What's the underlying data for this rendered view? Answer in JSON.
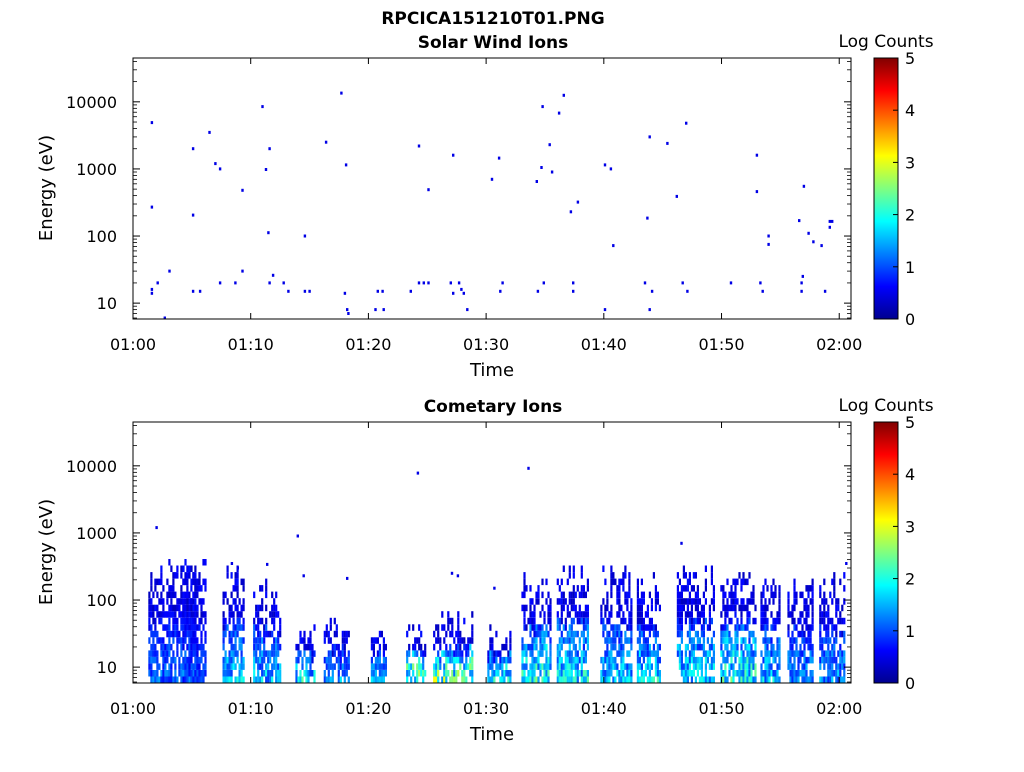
{
  "page_title": "RPCICA151210T01.PNG",
  "chart_data": [
    {
      "type": "heatmap",
      "title": "Solar Wind Ions",
      "xlabel": "Time",
      "ylabel": "Energy (eV)",
      "x_ticks": [
        "01:00",
        "01:10",
        "01:20",
        "01:30",
        "01:40",
        "01:50",
        "02:00"
      ],
      "y_scale": "log",
      "ylim": [
        5.8,
        45000
      ],
      "y_ticks": [
        "10",
        "100",
        "1000",
        "10000"
      ],
      "colorbar": {
        "label": "Log Counts",
        "ticks": [
          "0",
          "1",
          "2",
          "3",
          "4",
          "5"
        ],
        "range": [
          0,
          5
        ],
        "colormap": "jet"
      },
      "points": [
        [
          1.5,
          4900,
          0.1
        ],
        [
          1.5,
          270,
          0.1
        ],
        [
          1.5,
          16,
          0.1
        ],
        [
          1.5,
          14,
          0.1
        ],
        [
          2.0,
          20,
          0.1
        ],
        [
          2.6,
          6,
          0.1
        ],
        [
          3.0,
          30,
          0.1
        ],
        [
          5.0,
          2000,
          0.1
        ],
        [
          5.0,
          205,
          0.1
        ],
        [
          5.0,
          15,
          0.1
        ],
        [
          5.6,
          15,
          0.1
        ],
        [
          6.4,
          3500,
          0.1
        ],
        [
          6.9,
          1200,
          0.1
        ],
        [
          7.3,
          1000,
          0.1
        ],
        [
          7.3,
          20,
          0.1
        ],
        [
          8.6,
          20,
          0.1
        ],
        [
          9.2,
          480,
          0.1
        ],
        [
          9.2,
          30,
          0.1
        ],
        [
          10.9,
          8500,
          0.1
        ],
        [
          11.2,
          980,
          0.1
        ],
        [
          11.4,
          112,
          0.1
        ],
        [
          11.5,
          2000,
          0.1
        ],
        [
          11.5,
          20,
          0.1
        ],
        [
          11.8,
          26,
          0.1
        ],
        [
          12.7,
          20,
          0.1
        ],
        [
          13.1,
          15,
          0.1
        ],
        [
          14.5,
          100,
          0.1
        ],
        [
          14.5,
          15,
          0.1
        ],
        [
          14.9,
          15,
          0.1
        ],
        [
          16.3,
          2500,
          0.1
        ],
        [
          17.6,
          13500,
          0.1
        ],
        [
          17.9,
          14,
          0.1
        ],
        [
          18.0,
          1150,
          0.1
        ],
        [
          18.1,
          8,
          0.1
        ],
        [
          18.2,
          7,
          0.1
        ],
        [
          20.5,
          8,
          0.1
        ],
        [
          20.7,
          15,
          0.1
        ],
        [
          21.1,
          15,
          0.1
        ],
        [
          21.2,
          8,
          0.1
        ],
        [
          23.5,
          15,
          0.1
        ],
        [
          24.2,
          2200,
          0.1
        ],
        [
          24.2,
          20,
          0.1
        ],
        [
          24.6,
          20,
          0.1
        ],
        [
          25.0,
          490,
          0.1
        ],
        [
          25.0,
          20,
          0.1
        ],
        [
          26.9,
          20,
          0.1
        ],
        [
          27.1,
          1600,
          0.1
        ],
        [
          27.1,
          14,
          0.1
        ],
        [
          27.6,
          20,
          0.1
        ],
        [
          27.8,
          16,
          0.1
        ],
        [
          28.0,
          14,
          0.1
        ],
        [
          28.3,
          8,
          0.1
        ],
        [
          30.4,
          700,
          0.1
        ],
        [
          31.0,
          1450,
          0.1
        ],
        [
          31.3,
          20,
          0.1
        ],
        [
          31.1,
          15,
          0.1
        ],
        [
          34.2,
          650,
          0.1
        ],
        [
          34.3,
          15,
          0.1
        ],
        [
          34.6,
          1050,
          0.1
        ],
        [
          34.7,
          8500,
          0.1
        ],
        [
          34.8,
          20,
          0.1
        ],
        [
          35.3,
          2300,
          0.1
        ],
        [
          35.5,
          900,
          0.1
        ],
        [
          36.1,
          6800,
          0.1
        ],
        [
          36.5,
          12500,
          0.1
        ],
        [
          37.1,
          230,
          0.1
        ],
        [
          37.3,
          20,
          0.1
        ],
        [
          37.3,
          15,
          0.1
        ],
        [
          37.7,
          320,
          0.1
        ],
        [
          40.0,
          1150,
          0.1
        ],
        [
          40.0,
          8,
          0.1
        ],
        [
          40.5,
          1000,
          0.1
        ],
        [
          40.7,
          72,
          0.1
        ],
        [
          43.4,
          20,
          0.1
        ],
        [
          43.6,
          185,
          0.1
        ],
        [
          43.8,
          3000,
          0.1
        ],
        [
          43.8,
          8,
          0.1
        ],
        [
          44.0,
          15,
          0.1
        ],
        [
          45.3,
          2400,
          0.1
        ],
        [
          46.1,
          390,
          0.1
        ],
        [
          46.6,
          20,
          0.1
        ],
        [
          46.9,
          4800,
          0.1
        ],
        [
          47.0,
          15,
          0.1
        ],
        [
          50.7,
          20,
          0.1
        ],
        [
          52.9,
          1600,
          0.1
        ],
        [
          52.9,
          460,
          0.1
        ],
        [
          53.2,
          20,
          0.1
        ],
        [
          53.4,
          15,
          0.1
        ],
        [
          53.9,
          100,
          0.1
        ],
        [
          53.9,
          75,
          0.1
        ],
        [
          56.5,
          170,
          0.1
        ],
        [
          56.7,
          20,
          0.1
        ],
        [
          56.7,
          15,
          0.1
        ],
        [
          56.8,
          25,
          0.1
        ],
        [
          56.9,
          550,
          0.1
        ],
        [
          57.3,
          110,
          0.1
        ],
        [
          57.7,
          82,
          0.1
        ],
        [
          58.4,
          72,
          0.1
        ],
        [
          58.7,
          15,
          0.1
        ],
        [
          59.1,
          135,
          0.1
        ],
        [
          59.1,
          165,
          0.1
        ],
        [
          59.3,
          165,
          0.1
        ]
      ]
    },
    {
      "type": "heatmap",
      "title": "Cometary Ions",
      "xlabel": "Time",
      "ylabel": "Energy (eV)",
      "x_ticks": [
        "01:00",
        "01:10",
        "01:20",
        "01:30",
        "01:40",
        "01:50",
        "02:00"
      ],
      "y_scale": "log",
      "ylim": [
        5.8,
        45000
      ],
      "y_ticks": [
        "10",
        "100",
        "1000",
        "10000"
      ],
      "colorbar": {
        "label": "Log Counts",
        "ticks": [
          "0",
          "1",
          "2",
          "3",
          "4",
          "5"
        ],
        "range": [
          0,
          5
        ],
        "colormap": "jet"
      },
      "bursts": [
        {
          "t0": 1.3,
          "t1": 5.4,
          "emax": 350,
          "intensity": 0.25
        },
        {
          "t0": 4.2,
          "t1": 6.2,
          "emax": 450,
          "intensity": 0.2
        },
        {
          "t0": 7.6,
          "t1": 9.4,
          "emax": 300,
          "intensity": 0.35
        },
        {
          "t0": 10.2,
          "t1": 12.5,
          "emax": 180,
          "intensity": 0.35
        },
        {
          "t0": 13.8,
          "t1": 15.5,
          "emax": 40,
          "intensity": 0.4
        },
        {
          "t0": 16.2,
          "t1": 18.3,
          "emax": 50,
          "intensity": 0.3
        },
        {
          "t0": 20.2,
          "t1": 21.5,
          "emax": 45,
          "intensity": 0.35
        },
        {
          "t0": 23.2,
          "t1": 24.8,
          "emax": 45,
          "intensity": 0.55
        },
        {
          "t0": 25.5,
          "t1": 28.8,
          "emax": 65,
          "intensity": 0.55
        },
        {
          "t0": 30.1,
          "t1": 32.0,
          "emax": 40,
          "intensity": 0.45
        },
        {
          "t0": 33.0,
          "t1": 35.5,
          "emax": 230,
          "intensity": 0.45
        },
        {
          "t0": 36.0,
          "t1": 38.6,
          "emax": 330,
          "intensity": 0.4
        },
        {
          "t0": 39.7,
          "t1": 42.3,
          "emax": 300,
          "intensity": 0.35
        },
        {
          "t0": 42.8,
          "t1": 44.8,
          "emax": 240,
          "intensity": 0.4
        },
        {
          "t0": 46.2,
          "t1": 49.4,
          "emax": 300,
          "intensity": 0.4
        },
        {
          "t0": 49.9,
          "t1": 52.8,
          "emax": 270,
          "intensity": 0.45
        },
        {
          "t0": 53.3,
          "t1": 55.0,
          "emax": 230,
          "intensity": 0.35
        },
        {
          "t0": 55.6,
          "t1": 57.8,
          "emax": 220,
          "intensity": 0.3
        },
        {
          "t0": 58.3,
          "t1": 60.4,
          "emax": 230,
          "intensity": 0.3
        }
      ],
      "points": [
        [
          1.9,
          1200,
          0.1
        ],
        [
          8.3,
          350,
          0.1
        ],
        [
          8.8,
          300,
          0.1
        ],
        [
          11.3,
          340,
          0.1
        ],
        [
          13.9,
          900,
          0.1
        ],
        [
          14.4,
          230,
          0.1
        ],
        [
          18.1,
          210,
          0.1
        ],
        [
          24.1,
          7800,
          0.1
        ],
        [
          27.0,
          250,
          0.1
        ],
        [
          27.5,
          230,
          0.1
        ],
        [
          30.6,
          150,
          0.1
        ],
        [
          33.5,
          9200,
          0.1
        ],
        [
          46.5,
          700,
          0.1
        ],
        [
          60.5,
          350,
          0.1
        ]
      ]
    }
  ]
}
